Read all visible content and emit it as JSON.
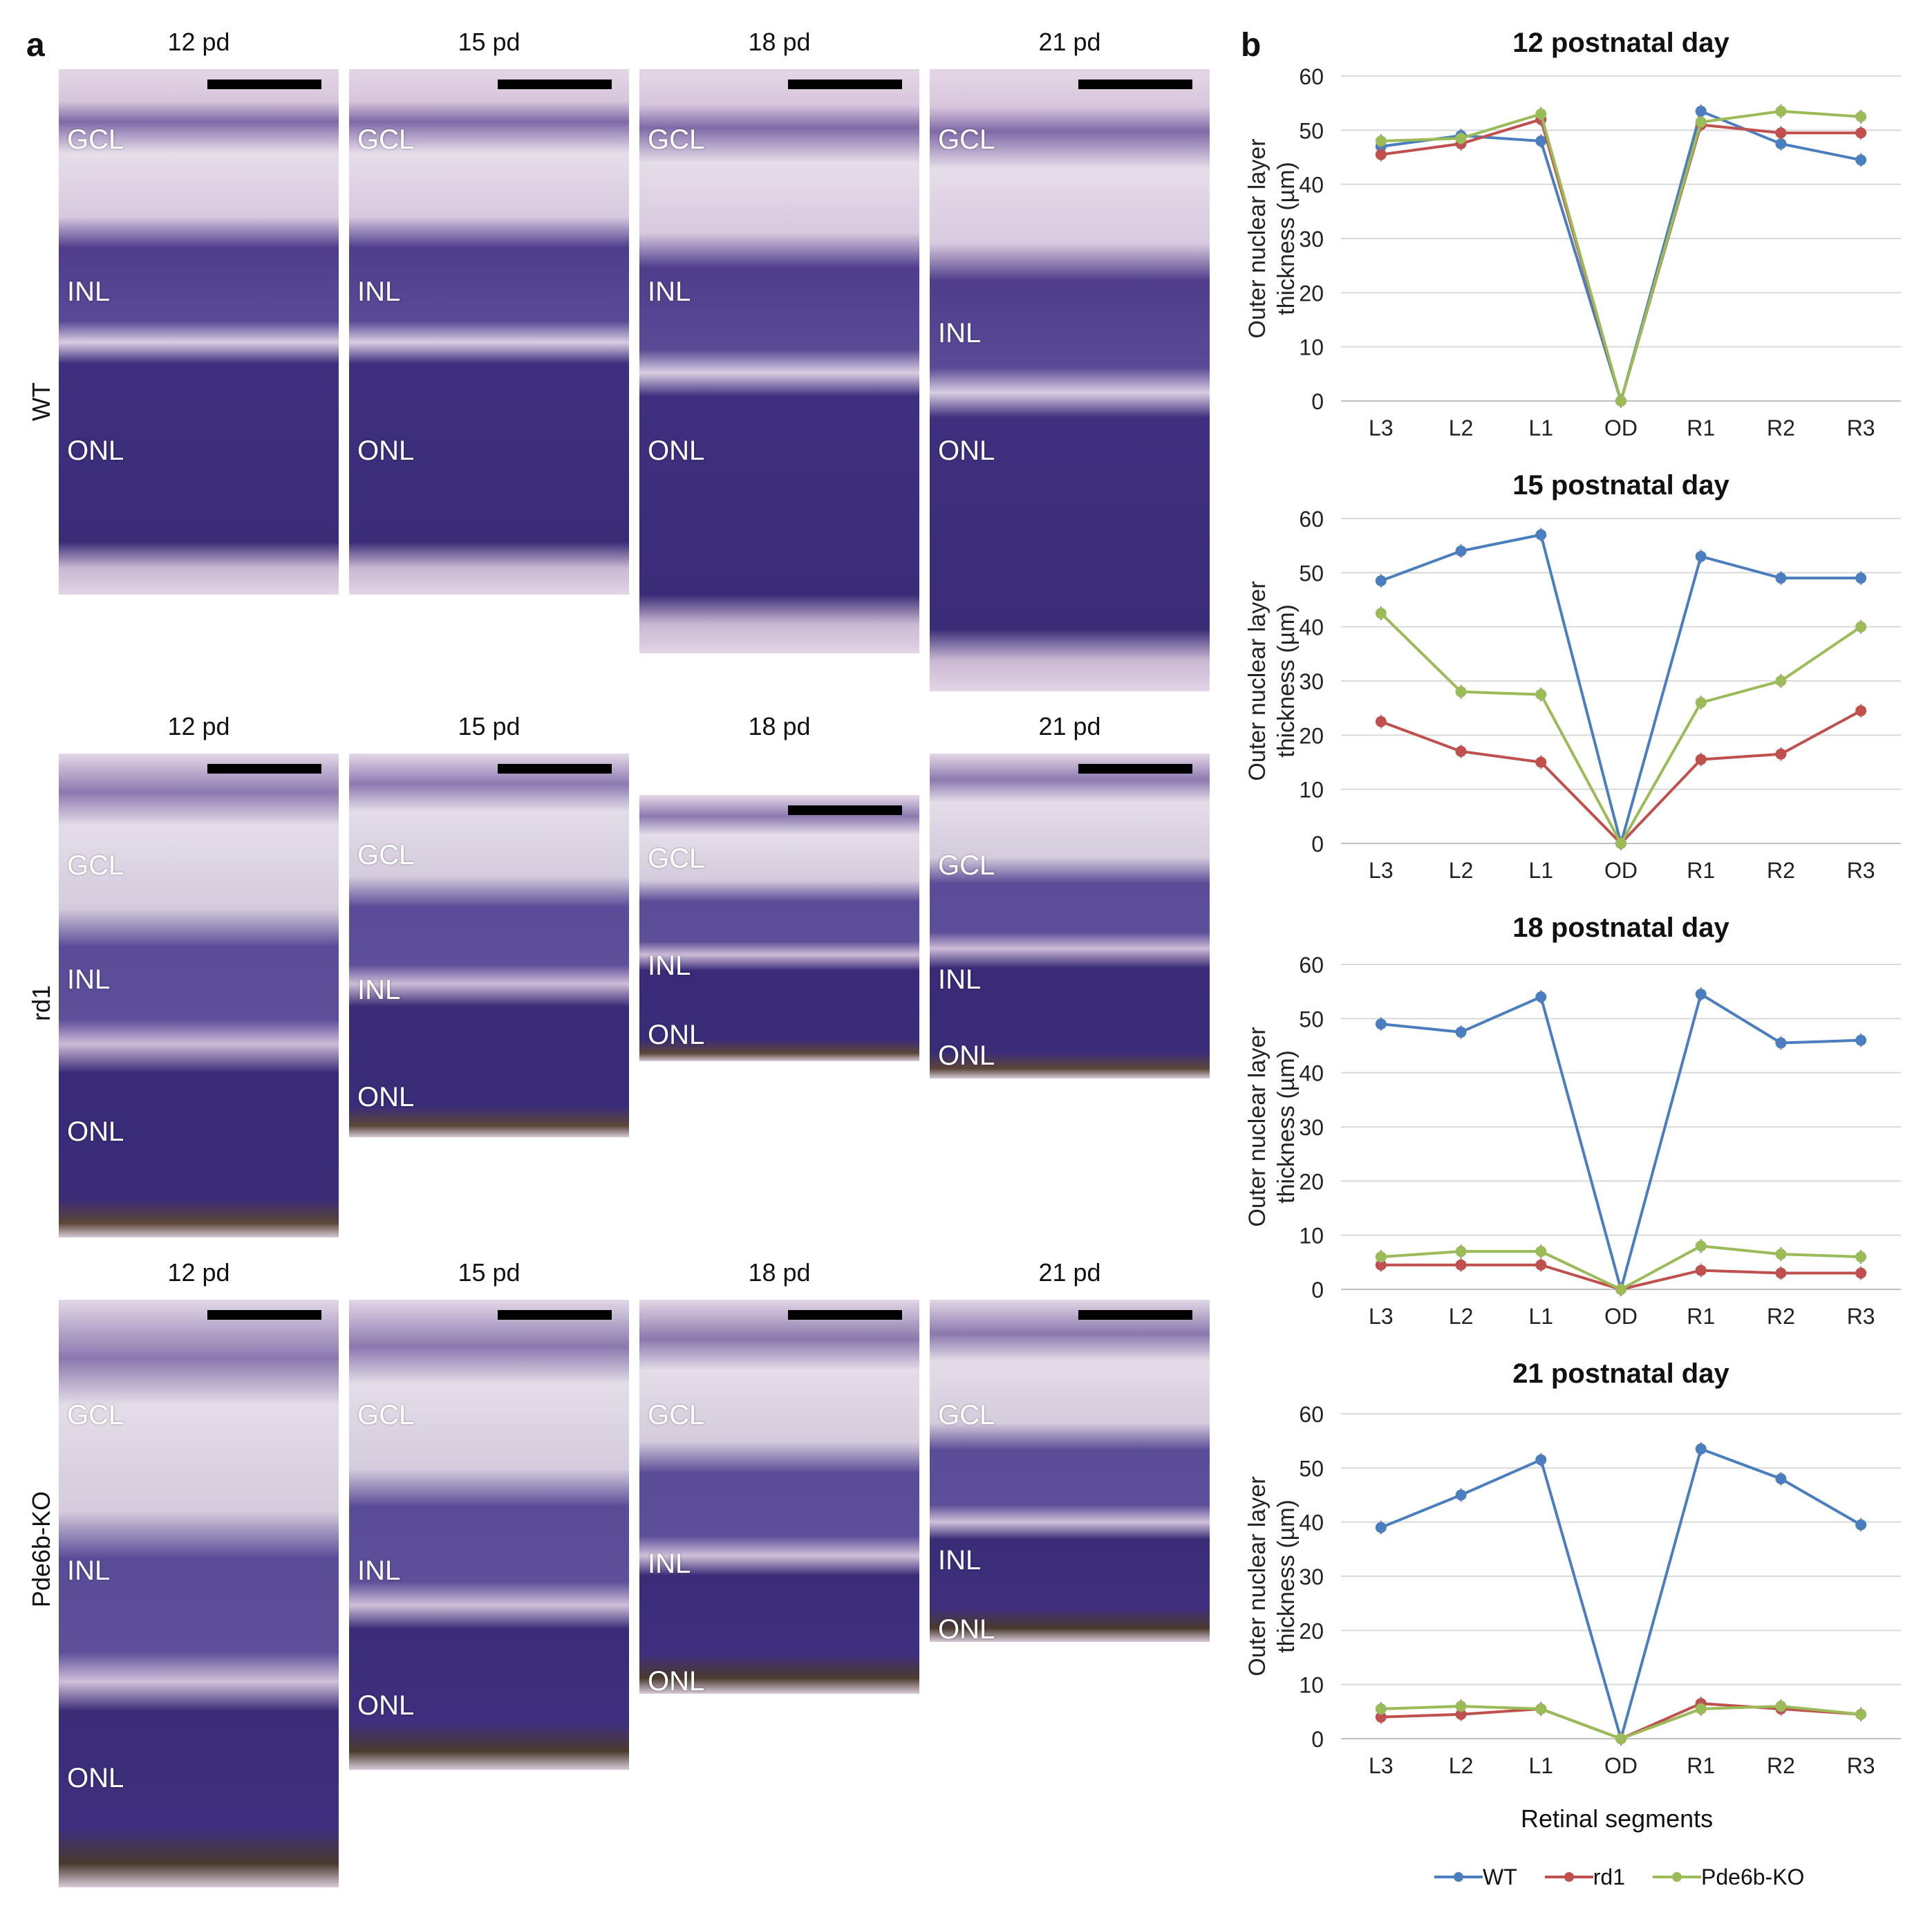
{
  "panel_a": {
    "letter": "a",
    "rows": [
      {
        "label": "WT",
        "cols": [
          "12 pd",
          "15 pd",
          "18 pd",
          "21 pd"
        ],
        "layers": [
          "GCL",
          "INL",
          "ONL"
        ]
      },
      {
        "label": "rd1",
        "cols": [
          "12 pd",
          "15 pd",
          "18 pd",
          "21 pd"
        ],
        "layers": [
          "GCL",
          "INL",
          "ONL"
        ]
      },
      {
        "label": "Pde6b-KO",
        "cols": [
          "12 pd",
          "15 pd",
          "18 pd",
          "21 pd"
        ],
        "layers": [
          "GCL",
          "INL",
          "ONL"
        ]
      }
    ]
  },
  "panel_b": {
    "letter": "b",
    "xlabel": "Retinal segments",
    "ylabel_line1": "Outer nuclear layer",
    "ylabel_line2": "thickness (µm)",
    "legend": [
      "WT",
      "rd1",
      "Pde6b-KO"
    ],
    "colors": {
      "WT": "#4a7ebf",
      "rd1": "#c0504d",
      "Pde6b-KO": "#9bbb59"
    }
  },
  "chart_data": [
    {
      "type": "line",
      "title": "12 postnatal day",
      "categories": [
        "L3",
        "L2",
        "L1",
        "OD",
        "R1",
        "R2",
        "R3"
      ],
      "yticks": [
        0,
        10,
        20,
        30,
        40,
        50,
        60
      ],
      "ylim": [
        0,
        60
      ],
      "series": [
        {
          "name": "WT",
          "values": [
            47,
            49,
            48,
            0,
            53.5,
            47.5,
            44.5
          ]
        },
        {
          "name": "rd1",
          "values": [
            45.5,
            47.5,
            52,
            0,
            51,
            49.5,
            49.5
          ]
        },
        {
          "name": "Pde6b-KO",
          "values": [
            48,
            48.5,
            53,
            0,
            51.5,
            53.5,
            52.5
          ]
        }
      ]
    },
    {
      "type": "line",
      "title": "15 postnatal day",
      "categories": [
        "L3",
        "L2",
        "L1",
        "OD",
        "R1",
        "R2",
        "R3"
      ],
      "yticks": [
        0,
        10,
        20,
        30,
        40,
        50,
        60
      ],
      "ylim": [
        0,
        60
      ],
      "series": [
        {
          "name": "WT",
          "values": [
            48.5,
            54,
            57,
            0,
            53,
            49,
            49
          ]
        },
        {
          "name": "rd1",
          "values": [
            22.5,
            17,
            15,
            0,
            15.5,
            16.5,
            24.5
          ]
        },
        {
          "name": "Pde6b-KO",
          "values": [
            42.5,
            28,
            27.5,
            0,
            26,
            30,
            40
          ]
        }
      ]
    },
    {
      "type": "line",
      "title": "18 postnatal day",
      "categories": [
        "L3",
        "L2",
        "L1",
        "OD",
        "R1",
        "R2",
        "R3"
      ],
      "yticks": [
        0,
        10,
        20,
        30,
        40,
        50,
        60
      ],
      "ylim": [
        0,
        60
      ],
      "series": [
        {
          "name": "WT",
          "values": [
            49,
            47.5,
            54,
            0,
            54.5,
            45.5,
            46
          ]
        },
        {
          "name": "rd1",
          "values": [
            4.5,
            4.5,
            4.5,
            0,
            3.5,
            3,
            3
          ]
        },
        {
          "name": "Pde6b-KO",
          "values": [
            6,
            7,
            7,
            0,
            8,
            6.5,
            6
          ]
        }
      ]
    },
    {
      "type": "line",
      "title": "21 postnatal day",
      "categories": [
        "L3",
        "L2",
        "L1",
        "OD",
        "R1",
        "R2",
        "R3"
      ],
      "yticks": [
        0,
        10,
        20,
        30,
        40,
        50,
        60
      ],
      "ylim": [
        0,
        60
      ],
      "series": [
        {
          "name": "WT",
          "values": [
            39,
            45,
            51.5,
            0,
            53.5,
            48,
            39.5
          ]
        },
        {
          "name": "rd1",
          "values": [
            4,
            4.5,
            5.5,
            0,
            6.5,
            5.5,
            4.5
          ]
        },
        {
          "name": "Pde6b-KO",
          "values": [
            5.5,
            6,
            5.5,
            0,
            5.5,
            6,
            4.5
          ]
        }
      ]
    }
  ]
}
